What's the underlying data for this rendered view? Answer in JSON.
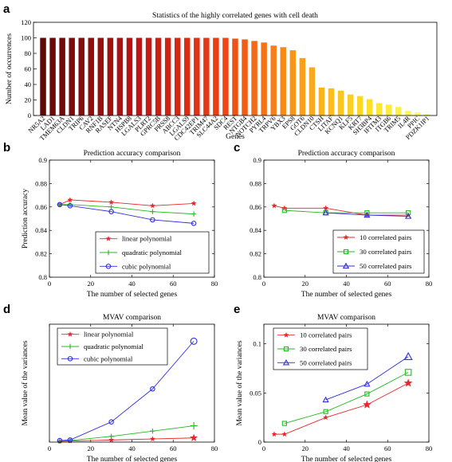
{
  "charts": [
    {
      "panel_label": "a",
      "chart_data": {
        "type": "bar",
        "title": "Statistics of the highly correlated genes with cell death",
        "xlabel": "Genes",
        "ylabel": "Number of occurrences",
        "ylim": [
          0,
          120
        ],
        "yticks": [
          0,
          20,
          40,
          60,
          80,
          100,
          120
        ],
        "categories": [
          "NR5A2",
          "LAD1",
          "TMEM63A",
          "CLDN1",
          "TRIP6",
          "CAV2",
          "RNF1B",
          "RASEF",
          "NTN4",
          "HSPB8",
          "LGALS3",
          "PLRT2",
          "GPRC5B",
          "PRSS8",
          "ABCC3",
          "LGALS9",
          "CDC42EP1",
          "TRIM47",
          "SLC44A2",
          "SDC4",
          "REST",
          "NTGB4",
          "NOTCH2",
          "PYRL4",
          "TRPV6",
          "YBX3",
          "EPS8",
          "GOT6",
          "CLDN10",
          "CTSH",
          "LITAF",
          "KCNQ1",
          "KLF5",
          "KRT7",
          "SH3BP4",
          "IFITM3",
          "ITGB6",
          "TRIM5",
          "IL4R",
          "PPIC",
          "PDZK1IP1"
        ],
        "values": [
          100,
          100,
          100,
          100,
          100,
          100,
          100,
          100,
          100,
          100,
          100,
          100,
          100,
          100,
          100,
          100,
          100,
          100,
          100,
          100,
          99,
          98,
          96,
          94,
          90,
          88,
          84,
          74,
          62,
          36,
          35,
          32,
          27,
          25,
          21,
          16,
          14,
          11,
          6,
          4,
          2
        ]
      }
    },
    {
      "panel_label": "b",
      "chart_data": {
        "type": "line",
        "title": "Prediction accuracy comparison",
        "xlabel": "The number of selected genes",
        "ylabel": "Prediction accuracy",
        "xlim": [
          0,
          80
        ],
        "ylim": [
          0.8,
          0.9
        ],
        "xticks": [
          0,
          20,
          40,
          60,
          80
        ],
        "yticks": [
          0.8,
          0.82,
          0.84,
          0.86,
          0.88,
          0.9
        ],
        "legend": "bottom-right",
        "series": [
          {
            "name": "linear polynomial",
            "marker": "star",
            "color": "#e8262a",
            "x": [
              5,
              10,
              30,
              50,
              70
            ],
            "y": [
              0.862,
              0.866,
              0.864,
              0.861,
              0.863
            ]
          },
          {
            "name": "quadratic polynomial",
            "marker": "plus",
            "color": "#22bb22",
            "x": [
              5,
              10,
              30,
              50,
              70
            ],
            "y": [
              0.862,
              0.862,
              0.86,
              0.856,
              0.854
            ]
          },
          {
            "name": "cubic polynomial",
            "marker": "circle",
            "color": "#2f2fe0",
            "x": [
              5,
              10,
              30,
              50,
              70
            ],
            "y": [
              0.862,
              0.861,
              0.856,
              0.849,
              0.846
            ]
          }
        ]
      }
    },
    {
      "panel_label": "c",
      "chart_data": {
        "type": "line",
        "title": "Prediction accuracy comparison",
        "xlabel": "The number of selected genes",
        "ylabel": "",
        "xlim": [
          0,
          80
        ],
        "ylim": [
          0.8,
          0.9
        ],
        "xticks": [
          0,
          20,
          40,
          60,
          80
        ],
        "yticks": [
          0.8,
          0.82,
          0.84,
          0.86,
          0.88,
          0.9
        ],
        "legend": "bottom-right",
        "series": [
          {
            "name": "10 correlated pairs",
            "marker": "star",
            "color": "#e8262a",
            "x": [
              5,
              10,
              30,
              50,
              70
            ],
            "y": [
              0.861,
              0.859,
              0.859,
              0.853,
              0.853
            ]
          },
          {
            "name": "30 correlated pairs",
            "marker": "square",
            "color": "#22bb22",
            "x": [
              10,
              30,
              50,
              70
            ],
            "y": [
              0.857,
              0.855,
              0.855,
              0.855
            ]
          },
          {
            "name": "50 correlated pairs",
            "marker": "triangle",
            "color": "#2f2fe0",
            "x": [
              30,
              50,
              70
            ],
            "y": [
              0.855,
              0.853,
              0.852
            ]
          }
        ]
      }
    },
    {
      "panel_label": "d",
      "chart_data": {
        "type": "line",
        "title": "MVAV comparison",
        "xlabel": "The number of selected genes",
        "ylabel": "Mean value of the variances",
        "xlim": [
          0,
          80
        ],
        "ylim": [
          0,
          0.45
        ],
        "xticks": [
          0,
          20,
          40,
          60,
          80
        ],
        "yticks": [],
        "legend": "top-left",
        "series": [
          {
            "name": "linear polynomial",
            "marker": "star",
            "color": "#e8262a",
            "x": [
              5,
              10,
              30,
              50,
              70
            ],
            "y": [
              0.003,
              0.004,
              0.008,
              0.012,
              0.016
            ]
          },
          {
            "name": "quadratic polynomial",
            "marker": "plus",
            "color": "#22bb22",
            "x": [
              5,
              10,
              30,
              50,
              70
            ],
            "y": [
              0.004,
              0.006,
              0.022,
              0.042,
              0.062
            ]
          },
          {
            "name": "cubic polynomial",
            "marker": "circle",
            "color": "#2f2fe0",
            "x": [
              5,
              10,
              30,
              50,
              70
            ],
            "y": [
              0.006,
              0.008,
              0.077,
              0.203,
              0.385
            ]
          }
        ]
      }
    },
    {
      "panel_label": "e",
      "chart_data": {
        "type": "line",
        "title": "MVAV comparison",
        "xlabel": "The number of selected genes",
        "ylabel": "Mean value of the variances",
        "xlim": [
          0,
          80
        ],
        "ylim": [
          0,
          0.12
        ],
        "xticks": [
          0,
          20,
          40,
          60,
          80
        ],
        "yticks": [
          0,
          0.05,
          0.1
        ],
        "legend": "top-left",
        "series": [
          {
            "name": "10 correlated pairs",
            "marker": "star",
            "color": "#e8262a",
            "x": [
              5,
              10,
              30,
              50,
              70
            ],
            "y": [
              0.008,
              0.008,
              0.025,
              0.038,
              0.06
            ]
          },
          {
            "name": "30 correlated pairs",
            "marker": "square",
            "color": "#22bb22",
            "x": [
              10,
              30,
              50,
              70
            ],
            "y": [
              0.019,
              0.031,
              0.049,
              0.071
            ]
          },
          {
            "name": "50 correlated pairs",
            "marker": "triangle",
            "color": "#2f2fe0",
            "x": [
              30,
              50,
              70
            ],
            "y": [
              0.043,
              0.059,
              0.087
            ]
          }
        ]
      }
    }
  ]
}
